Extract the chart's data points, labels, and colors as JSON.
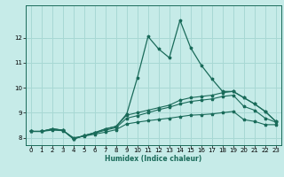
{
  "xlabel": "Humidex (Indice chaleur)",
  "bg_color": "#c6ebe8",
  "grid_color": "#a8d8d4",
  "line_color": "#1a6b5a",
  "xlim": [
    -0.5,
    23.5
  ],
  "ylim": [
    7.7,
    13.3
  ],
  "yticks": [
    8,
    9,
    10,
    11,
    12
  ],
  "xticks": [
    0,
    1,
    2,
    3,
    4,
    5,
    6,
    7,
    8,
    9,
    10,
    11,
    12,
    13,
    14,
    15,
    16,
    17,
    18,
    19,
    20,
    21,
    22,
    23
  ],
  "line1_x": [
    0,
    1,
    2,
    3,
    4,
    5,
    6,
    7,
    8,
    9,
    10,
    11,
    12,
    13,
    14,
    15,
    16,
    17,
    18,
    19,
    20,
    21,
    22,
    23
  ],
  "line1_y": [
    8.25,
    8.25,
    8.35,
    8.3,
    7.95,
    8.08,
    8.2,
    8.35,
    8.45,
    8.95,
    10.4,
    12.05,
    11.55,
    11.2,
    12.7,
    11.6,
    10.9,
    10.35,
    9.85,
    9.85,
    9.6,
    9.35,
    9.05,
    8.65
  ],
  "line2_x": [
    0,
    1,
    2,
    3,
    4,
    5,
    6,
    7,
    8,
    9,
    10,
    11,
    12,
    13,
    14,
    15,
    16,
    17,
    18,
    19,
    20,
    21,
    22,
    23
  ],
  "line2_y": [
    8.25,
    8.25,
    8.35,
    8.3,
    7.95,
    8.08,
    8.2,
    8.35,
    8.45,
    8.9,
    9.0,
    9.1,
    9.2,
    9.3,
    9.5,
    9.6,
    9.65,
    9.7,
    9.8,
    9.85,
    9.6,
    9.35,
    9.05,
    8.65
  ],
  "line3_x": [
    0,
    1,
    2,
    3,
    4,
    5,
    6,
    7,
    8,
    9,
    10,
    11,
    12,
    13,
    14,
    15,
    16,
    17,
    18,
    19,
    20,
    21,
    22,
    23
  ],
  "line3_y": [
    8.25,
    8.25,
    8.35,
    8.3,
    7.95,
    8.08,
    8.18,
    8.3,
    8.4,
    8.78,
    8.88,
    9.0,
    9.12,
    9.22,
    9.35,
    9.45,
    9.5,
    9.55,
    9.65,
    9.7,
    9.25,
    9.1,
    8.78,
    8.62
  ],
  "line4_x": [
    0,
    1,
    2,
    3,
    4,
    5,
    6,
    7,
    8,
    9,
    10,
    11,
    12,
    13,
    14,
    15,
    16,
    17,
    18,
    19,
    20,
    21,
    22,
    23
  ],
  "line4_y": [
    8.25,
    8.25,
    8.3,
    8.28,
    8.0,
    8.06,
    8.14,
    8.22,
    8.32,
    8.55,
    8.62,
    8.68,
    8.73,
    8.78,
    8.84,
    8.9,
    8.92,
    8.95,
    9.0,
    9.05,
    8.72,
    8.65,
    8.52,
    8.52
  ]
}
